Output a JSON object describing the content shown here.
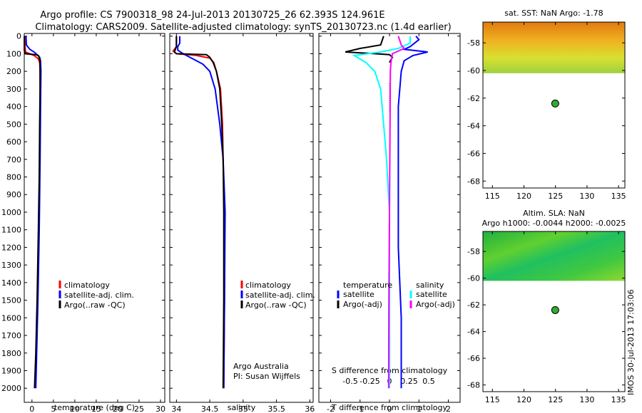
{
  "header": {
    "line1": "Argo profile: CS 7900318_98 24-Jul-2013 20130725_26 62.393S 124.961E",
    "line2": "Climatology: CARS2009. Satellite-adjusted climatology: synTS_20130723.nc (1.4d earlier)"
  },
  "depth_ticks": [
    0,
    100,
    200,
    300,
    400,
    500,
    600,
    700,
    800,
    900,
    1000,
    1100,
    1200,
    1300,
    1400,
    1500,
    1600,
    1700,
    1800,
    1900,
    2000
  ],
  "colors": {
    "climatology": "#ff0000",
    "satellite": "#0000ff",
    "argo": "#000000",
    "sat_s": "#00ffff",
    "argo_s": "#ff00ff"
  },
  "legend_main": {
    "clim": "climatology",
    "sat": "satellite-adj. clim.",
    "argo": "Argo(..raw -QC)"
  },
  "legend_diff": {
    "temperature": "temperature",
    "salinity": "salinity",
    "t_sat": "satellite",
    "t_argo": "Argo(-adj)",
    "s_sat": "satellite",
    "s_argo": "Argo(-adj)"
  },
  "credits": {
    "line1": "Argo Australia",
    "line2": "PI: Susan Wijffels"
  },
  "vertical_stamp": "IMOS 30-Jul-2013 17:03:06",
  "maps": [
    {
      "title": "sat. SST: NaN Argo: -1.78",
      "subtitle": "",
      "lat_ticks": [
        "-58",
        "-60",
        "-62",
        "-64",
        "-66",
        "-68"
      ],
      "lon_ticks": [
        "115",
        "120",
        "125",
        "130",
        "135"
      ],
      "lat_range": [
        -68.5,
        -56.5
      ],
      "lon_range": [
        113.5,
        136
      ],
      "float": {
        "lon": 124.961,
        "lat": -62.393
      }
    },
    {
      "title": "Altim. SLA: NaN",
      "subtitle": "Argo h1000: -0.0044 h2000: -0.0025",
      "lat_ticks": [
        "-58",
        "-60",
        "-62",
        "-64",
        "-66",
        "-68"
      ],
      "lon_ticks": [
        "115",
        "120",
        "125",
        "130",
        "135"
      ],
      "lat_range": [
        -68.5,
        -56.5
      ],
      "lon_range": [
        113.5,
        136
      ],
      "float": {
        "lon": 124.961,
        "lat": -62.393
      }
    }
  ],
  "chart_data": [
    {
      "type": "line",
      "xlabel": "temperature (deg C)",
      "ylabel": "",
      "xlim": [
        -1.8,
        31
      ],
      "ylim": [
        2080,
        -15
      ],
      "x_ticks": [
        0,
        5,
        10,
        15,
        20,
        25,
        30
      ],
      "x_tick_labels": [
        "0",
        "5",
        "10",
        "15",
        "20",
        "25",
        "30"
      ],
      "series": [
        {
          "name": "climatology",
          "color": "#ff0000",
          "points": [
            [
              -1.6,
              0
            ],
            [
              -1.6,
              60
            ],
            [
              -1.5,
              90
            ],
            [
              0.5,
              110
            ],
            [
              1.5,
              130
            ],
            [
              1.8,
              150
            ],
            [
              1.9,
              200
            ],
            [
              1.9,
              400
            ],
            [
              1.8,
              700
            ],
            [
              1.6,
              1100
            ],
            [
              1.3,
              1500
            ],
            [
              1.0,
              1800
            ],
            [
              0.8,
              2000
            ]
          ]
        },
        {
          "name": "satellite-adj. clim.",
          "color": "#0000ff",
          "points": [
            [
              -1.4,
              0
            ],
            [
              -1.3,
              50
            ],
            [
              -0.5,
              75
            ],
            [
              0.5,
              90
            ],
            [
              1.2,
              105
            ],
            [
              1.8,
              120
            ],
            [
              2.0,
              140
            ],
            [
              2.1,
              200
            ],
            [
              2.0,
              400
            ],
            [
              1.9,
              700
            ],
            [
              1.7,
              1100
            ],
            [
              1.4,
              1500
            ],
            [
              1.1,
              1800
            ],
            [
              0.9,
              2000
            ]
          ]
        },
        {
          "name": "Argo(..raw -QC)",
          "color": "#000000",
          "points": [
            [
              -1.78,
              0
            ],
            [
              -1.78,
              80
            ],
            [
              -1.6,
              100
            ],
            [
              0.8,
              105
            ],
            [
              1.5,
              110
            ],
            [
              1.8,
              130
            ],
            [
              1.9,
              160
            ],
            [
              1.9,
              200
            ],
            [
              1.9,
              300
            ],
            [
              1.8,
              500
            ],
            [
              1.7,
              800
            ],
            [
              1.5,
              1100
            ],
            [
              1.2,
              1500
            ],
            [
              0.9,
              1800
            ],
            [
              0.6,
              2000
            ]
          ]
        }
      ]
    },
    {
      "type": "line",
      "xlabel": "salinity",
      "ylabel": "",
      "xlim": [
        33.9,
        36.05
      ],
      "ylim": [
        2080,
        -15
      ],
      "x_ticks": [
        34,
        34.5,
        35,
        35.5,
        36
      ],
      "x_tick_labels": [
        "34",
        "34.5",
        "35",
        "35.5",
        "36"
      ],
      "series": [
        {
          "name": "climatology",
          "color": "#ff0000",
          "points": [
            [
              34.0,
              0
            ],
            [
              34.0,
              60
            ],
            [
              33.95,
              85
            ],
            [
              34.0,
              100
            ],
            [
              34.3,
              110
            ],
            [
              34.5,
              125
            ],
            [
              34.56,
              150
            ],
            [
              34.6,
              200
            ],
            [
              34.66,
              300
            ],
            [
              34.69,
              500
            ],
            [
              34.7,
              700
            ],
            [
              34.72,
              1000
            ],
            [
              34.72,
              1500
            ],
            [
              34.71,
              2000
            ]
          ]
        },
        {
          "name": "satellite-adj. clim.",
          "color": "#0000ff",
          "points": [
            [
              34.05,
              0
            ],
            [
              34.05,
              40
            ],
            [
              34.02,
              60
            ],
            [
              34.02,
              80
            ],
            [
              34.1,
              100
            ],
            [
              34.2,
              120
            ],
            [
              34.3,
              140
            ],
            [
              34.4,
              160
            ],
            [
              34.5,
              200
            ],
            [
              34.58,
              300
            ],
            [
              34.65,
              500
            ],
            [
              34.7,
              700
            ],
            [
              34.72,
              900
            ],
            [
              34.73,
              1000
            ],
            [
              34.72,
              1500
            ],
            [
              34.71,
              2000
            ]
          ]
        },
        {
          "name": "Argo(..raw -QC)",
          "color": "#000000",
          "points": [
            [
              34.0,
              0
            ],
            [
              34.0,
              60
            ],
            [
              33.97,
              90
            ],
            [
              34.0,
              100
            ],
            [
              34.45,
              105
            ],
            [
              34.5,
              120
            ],
            [
              34.55,
              150
            ],
            [
              34.6,
              200
            ],
            [
              34.65,
              300
            ],
            [
              34.68,
              500
            ],
            [
              34.7,
              700
            ],
            [
              34.71,
              1000
            ],
            [
              34.71,
              1500
            ],
            [
              34.7,
              2000
            ]
          ]
        }
      ]
    },
    {
      "type": "line",
      "xlabel": "T difference from climatology",
      "ylabel": "",
      "xlim": [
        -2.4,
        2.4
      ],
      "ylim": [
        2080,
        -15
      ],
      "x_ticks": [
        -2,
        -1,
        0,
        1,
        2
      ],
      "x_tick_labels": [
        "-2",
        "-1",
        "0",
        "1",
        "2"
      ],
      "top_xlabel": "S difference from climatology",
      "top_x_ticks": [
        -0.5,
        -0.25,
        0,
        0.25,
        0.5
      ],
      "top_x_tick_labels": [
        "-0.5",
        "-0.25",
        "0",
        "0.25",
        "0.5"
      ],
      "top_xlim": [
        -0.9,
        0.9
      ],
      "series": [
        {
          "name": "T satellite",
          "color": "#0000ff",
          "points": [
            [
              0.9,
              0
            ],
            [
              1.0,
              20
            ],
            [
              0.7,
              60
            ],
            [
              0.5,
              75
            ],
            [
              1.3,
              90
            ],
            [
              0.8,
              110
            ],
            [
              0.5,
              140
            ],
            [
              0.4,
              200
            ],
            [
              0.3,
              400
            ],
            [
              0.3,
              800
            ],
            [
              0.3,
              1200
            ],
            [
              0.4,
              1600
            ],
            [
              0.4,
              2000
            ]
          ]
        },
        {
          "name": "T Argo(-adj)",
          "color": "#000000",
          "points": [
            [
              -0.2,
              0
            ],
            [
              -0.3,
              50
            ],
            [
              -1.0,
              70
            ],
            [
              -1.5,
              90
            ],
            [
              -0.5,
              100
            ],
            [
              0.0,
              105
            ],
            [
              0.1,
              120
            ],
            [
              0.0,
              150
            ]
          ]
        },
        {
          "name": "S satellite",
          "color": "#00ffff",
          "points": [
            [
              0.7,
              0
            ],
            [
              0.7,
              40
            ],
            [
              0.3,
              70
            ],
            [
              -0.3,
              90
            ],
            [
              -1.2,
              110
            ],
            [
              -0.8,
              150
            ],
            [
              -0.5,
              200
            ],
            [
              -0.3,
              300
            ],
            [
              -0.2,
              500
            ],
            [
              -0.1,
              700
            ],
            [
              0.0,
              1000
            ],
            [
              0.0,
              1500
            ],
            [
              0.0,
              2000
            ]
          ]
        },
        {
          "name": "S Argo(-adj)",
          "color": "#ff00ff",
          "points": [
            [
              0.3,
              0
            ],
            [
              0.4,
              50
            ],
            [
              0.5,
              70
            ],
            [
              0.1,
              100
            ],
            [
              0.05,
              150
            ],
            [
              0.03,
              200
            ],
            [
              0.02,
              500
            ],
            [
              0.0,
              1000
            ],
            [
              -0.02,
              1500
            ],
            [
              -0.03,
              2000
            ]
          ]
        }
      ]
    }
  ]
}
